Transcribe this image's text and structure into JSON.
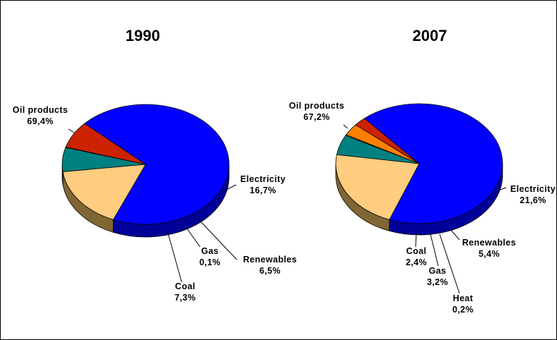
{
  "chart_data": [
    {
      "type": "pie",
      "title": "1990",
      "slices": [
        {
          "name": "Oil products",
          "value": 69.4,
          "label": "69,4%",
          "color": "#0000FF",
          "side": "#000099"
        },
        {
          "name": "Electricity",
          "value": 16.7,
          "label": "16,7%",
          "color": "#FFCC80",
          "side": "#806633"
        },
        {
          "name": "Renewables",
          "value": 6.5,
          "label": "6,5%",
          "color": "#008080",
          "side": "#004040"
        },
        {
          "name": "Gas",
          "value": 0.1,
          "label": "0,1%",
          "color": "#FF8000",
          "side": "#804000"
        },
        {
          "name": "Coal",
          "value": 7.3,
          "label": "7,3%",
          "color": "#CC2200",
          "side": "#661100"
        }
      ]
    },
    {
      "type": "pie",
      "title": "2007",
      "slices": [
        {
          "name": "Oil products",
          "value": 67.2,
          "label": "67,2%",
          "color": "#0000FF",
          "side": "#000099"
        },
        {
          "name": "Electricity",
          "value": 21.6,
          "label": "21,6%",
          "color": "#FFCC80",
          "side": "#806633"
        },
        {
          "name": "Renewables",
          "value": 5.4,
          "label": "5,4%",
          "color": "#008080",
          "side": "#004040"
        },
        {
          "name": "Heat",
          "value": 0.2,
          "label": "0,2%",
          "color": "#CCCCFF",
          "side": "#666680"
        },
        {
          "name": "Gas",
          "value": 3.2,
          "label": "3,2%",
          "color": "#FF8000",
          "side": "#804000"
        },
        {
          "name": "Coal",
          "value": 2.4,
          "label": "2,4%",
          "color": "#CC2200",
          "side": "#661100"
        }
      ]
    }
  ]
}
